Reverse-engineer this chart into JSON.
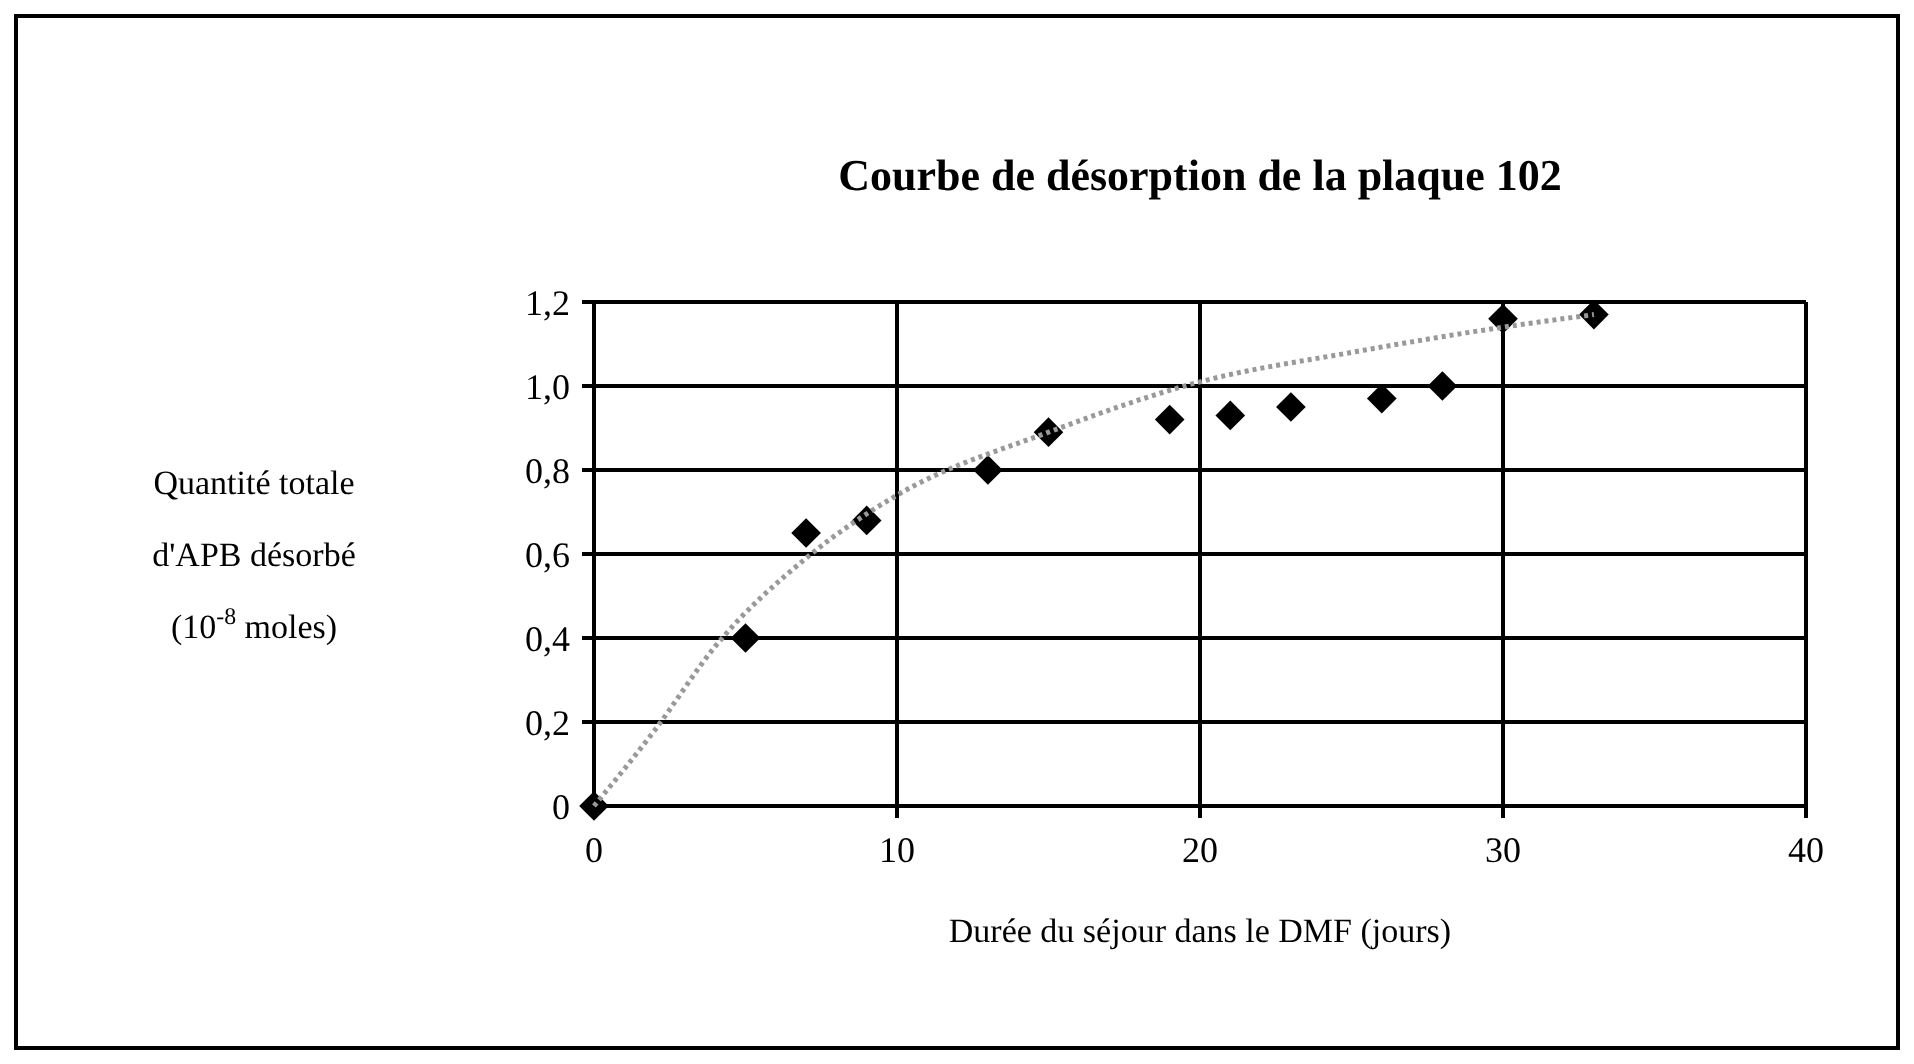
{
  "chart_data": {
    "type": "scatter",
    "title": "Courbe de désorption de la plaque 102",
    "xlabel": "Durée du séjour dans le DMF (jours)",
    "ylabel": "Quantité totale\nd'APB désorbé\n(10$^{-8}$ moles)",
    "series": [
      {
        "color": "#000000",
        "marker": "diamond",
        "x": [
          0,
          5,
          7,
          9,
          13,
          15,
          19,
          21,
          23,
          26,
          28,
          30,
          33
        ],
        "values": [
          0,
          0.4,
          0.65,
          0.68,
          0.8,
          0.89,
          0.92,
          0.93,
          0.95,
          0.97,
          1.0,
          1.16,
          1.17
        ]
      },
      {
        "type": "line",
        "color": "#999999",
        "line_style": "dotted",
        "x": [
          0,
          2,
          4,
          7,
          10,
          15,
          20,
          25,
          30,
          33
        ],
        "values": [
          0,
          0.18,
          0.38,
          0.59,
          0.74,
          0.89,
          1.01,
          1.08,
          1.14,
          1.17
        ]
      }
    ],
    "xlim": [
      0,
      40
    ],
    "xticks": [
      0,
      10,
      20,
      30,
      40
    ],
    "ylim": [
      0,
      1.2
    ],
    "yticks": [
      0,
      {
        "value": 0.2,
        "label": "0,2"
      },
      {
        "value": 0.4,
        "label": "0,4"
      },
      {
        "value": 0.6,
        "label": "0,6"
      },
      {
        "value": 0.8,
        "label": "0,8"
      },
      {
        "value": 1.0,
        "label": "1,0"
      },
      {
        "value": 1.2,
        "label": "1,2"
      }
    ],
    "grid": true
  }
}
